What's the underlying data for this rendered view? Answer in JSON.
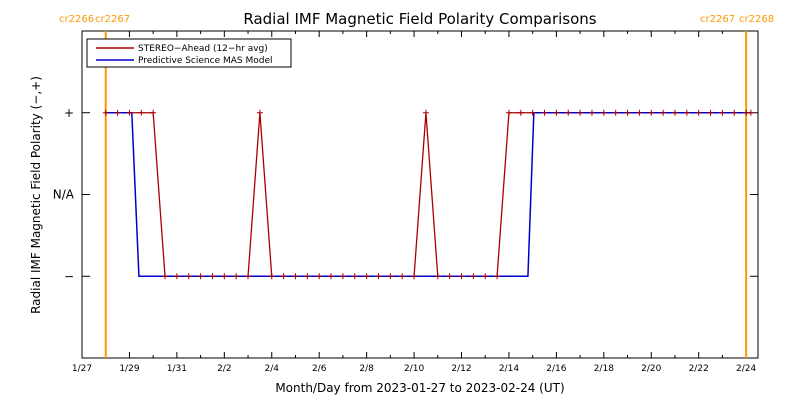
{
  "chart_data": {
    "type": "line",
    "title": "Radial IMF Magnetic Field Polarity Comparisons",
    "xlabel": "Month/Day from 2023-01-27 to 2023-02-24 (UT)",
    "ylabel": "Radial IMF Magnetic Field Polarity (−,+)",
    "x_range_days": [
      0,
      28.5
    ],
    "y_range": [
      -2,
      2
    ],
    "x_ticks": [
      "1/27",
      "1/29",
      "1/31",
      "2/2",
      "2/4",
      "2/6",
      "2/8",
      "2/10",
      "2/12",
      "2/14",
      "2/16",
      "2/18",
      "2/20",
      "2/22",
      "2/24"
    ],
    "y_ticks": [
      {
        "value": 1,
        "label": "+"
      },
      {
        "value": 0,
        "label": "N/A"
      },
      {
        "value": -1,
        "label": "−"
      }
    ],
    "legend": {
      "placement": "top-left",
      "entries": [
        {
          "label": "STEREO−Ahead (12−hr avg)",
          "color": "#aa0000"
        },
        {
          "label": "Predictive Science MAS Model",
          "color": "#0000cc"
        }
      ]
    },
    "carrington": {
      "color": "#ff9900",
      "boundaries": [
        {
          "day": 1.0,
          "label_left": "cr2266",
          "label_right": "cr2267"
        },
        {
          "day": 28.0,
          "label_left": "cr2267",
          "label_right": "cr2268"
        }
      ]
    },
    "series": [
      {
        "name": "STEREO−Ahead (12−hr avg)",
        "color": "#aa0000",
        "x": [
          1.0,
          1.5,
          2.0,
          2.5,
          3.0,
          3.5,
          4.0,
          4.5,
          5.0,
          5.5,
          6.0,
          6.5,
          7.0,
          7.5,
          8.0,
          8.5,
          9.0,
          9.5,
          10.0,
          10.5,
          11.0,
          11.5,
          12.0,
          12.5,
          13.0,
          13.5,
          14.0,
          14.5,
          15.0,
          15.5,
          16.0,
          16.5,
          17.0,
          17.5,
          18.0,
          18.5,
          19.0,
          19.5,
          20.0,
          20.5,
          21.0,
          21.5,
          22.0,
          22.5,
          23.0,
          23.5,
          24.0,
          24.5,
          25.0,
          25.5,
          26.0,
          26.5,
          27.0,
          27.5,
          28.0,
          28.2
        ],
        "y": [
          1,
          1,
          1,
          1,
          1,
          -1,
          -1,
          -1,
          -1,
          -1,
          -1,
          -1,
          -1,
          1,
          -1,
          -1,
          -1,
          -1,
          -1,
          -1,
          -1,
          -1,
          -1,
          -1,
          -1,
          -1,
          -1,
          1,
          -1,
          -1,
          -1,
          -1,
          -1,
          -1,
          1,
          1,
          1,
          1,
          1,
          1,
          1,
          1,
          1,
          1,
          1,
          1,
          1,
          1,
          1,
          1,
          1,
          1,
          1,
          1,
          1,
          1
        ]
      },
      {
        "name": "Predictive Science MAS Model",
        "color": "#0000cc",
        "x": [
          1.0,
          2.1,
          2.4,
          18.8,
          19.05,
          28.2
        ],
        "y": [
          1,
          1,
          -1,
          -1,
          1,
          1
        ]
      }
    ]
  }
}
